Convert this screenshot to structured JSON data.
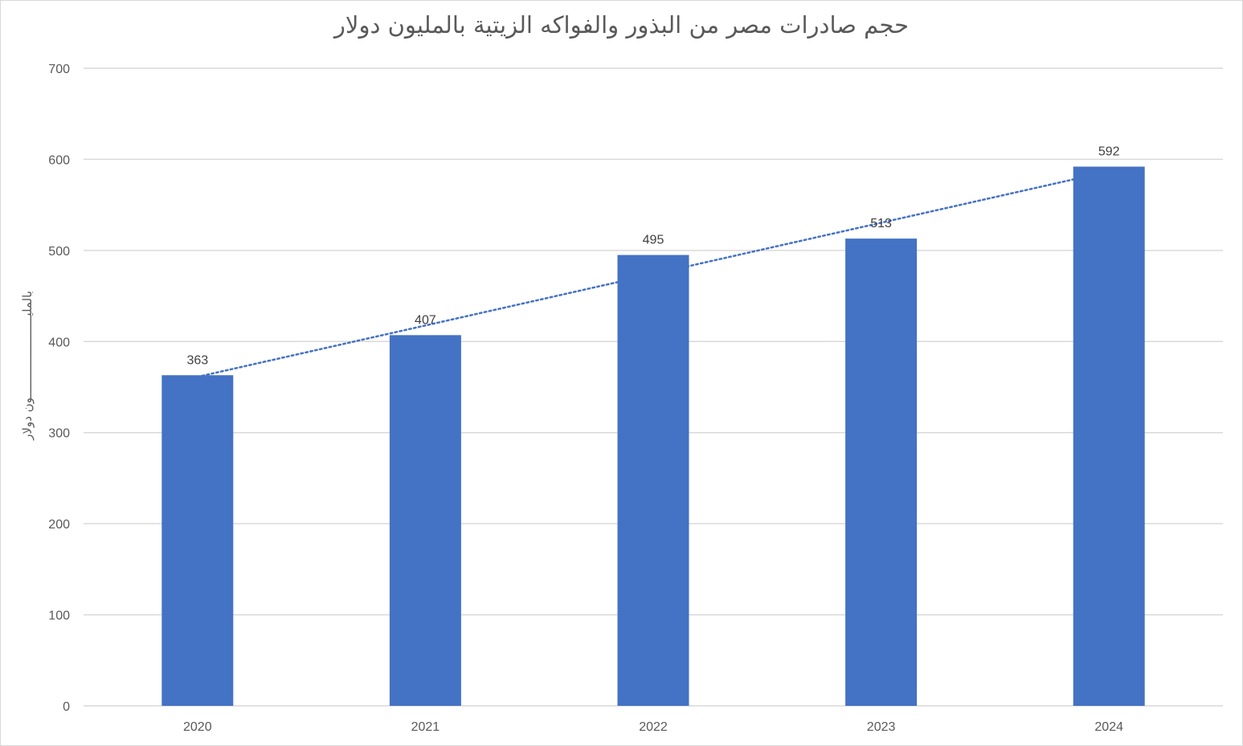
{
  "chart_data": {
    "type": "bar",
    "title": "حجم  صادرات مصر من البذور والفواكه الزيتية بالمليون دولار",
    "ylabel": "بالمليـــــــــــــــــــــــون دولار",
    "xlabel": "",
    "categories": [
      "2020",
      "2021",
      "2022",
      "2023",
      "2024"
    ],
    "values": [
      363,
      407,
      495,
      513,
      592
    ],
    "ylim": [
      0,
      700
    ],
    "yticks": [
      0,
      100,
      200,
      300,
      400,
      500,
      600,
      700
    ],
    "trendline": "linear",
    "grid": true,
    "bar_color": "#4472c4",
    "trend_color": "#4472c4",
    "grid_color": "#d9d9d9"
  }
}
